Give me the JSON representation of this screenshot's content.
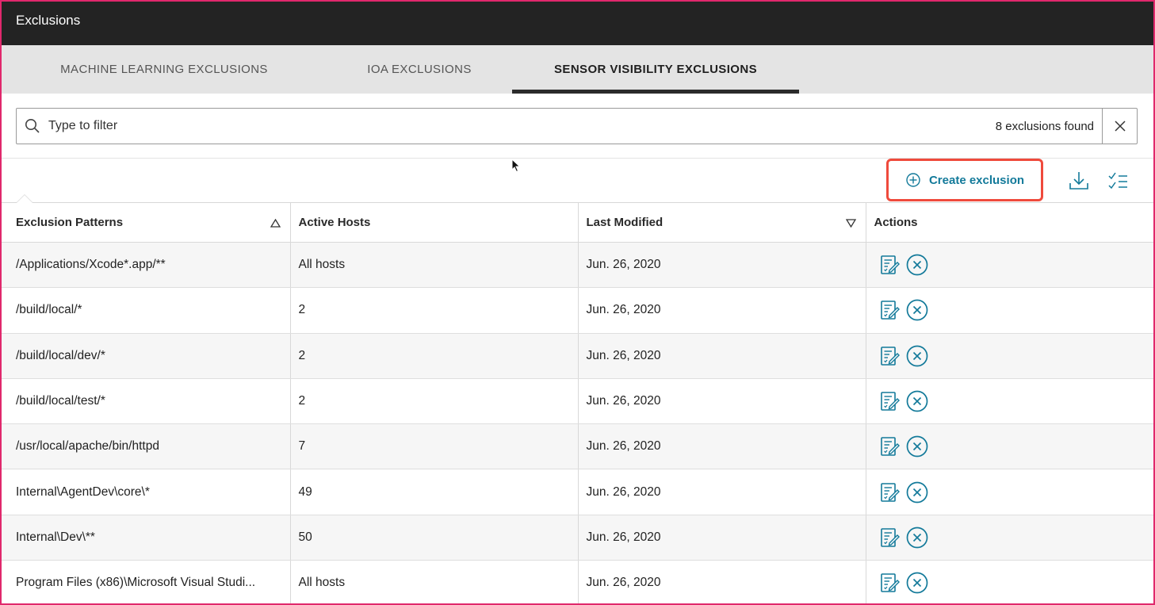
{
  "window": {
    "title": "Exclusions"
  },
  "tabs": [
    {
      "label": "MACHINE LEARNING EXCLUSIONS",
      "active": false
    },
    {
      "label": "IOA EXCLUSIONS",
      "active": false
    },
    {
      "label": "SENSOR VISIBILITY EXCLUSIONS",
      "active": true
    }
  ],
  "filter": {
    "placeholder": "Type to filter",
    "value": "",
    "count_text": "8 exclusions found",
    "search_icon": "search-icon",
    "clear_icon": "close-icon"
  },
  "toolbar": {
    "create_label": "Create exclusion",
    "create_icon": "plus-circle-icon",
    "download_icon": "download-icon",
    "checklist_icon": "checklist-icon"
  },
  "table": {
    "columns": [
      {
        "label": "Exclusion Patterns",
        "sort": "ascending"
      },
      {
        "label": "Active Hosts"
      },
      {
        "label": "Last Modified",
        "sort": "descending"
      },
      {
        "label": "Actions"
      }
    ],
    "rows": [
      {
        "pattern": "/Applications/Xcode*.app/**",
        "hosts": "All hosts",
        "modified": "Jun. 26, 2020"
      },
      {
        "pattern": "/build/local/*",
        "hosts": "2",
        "modified": "Jun. 26, 2020"
      },
      {
        "pattern": "/build/local/dev/*",
        "hosts": "2",
        "modified": "Jun. 26, 2020"
      },
      {
        "pattern": "/build/local/test/*",
        "hosts": "2",
        "modified": "Jun. 26, 2020"
      },
      {
        "pattern": "/usr/local/apache/bin/httpd",
        "hosts": "7",
        "modified": "Jun. 26, 2020"
      },
      {
        "pattern": "Internal\\AgentDev\\core\\*",
        "hosts": "49",
        "modified": "Jun. 26, 2020"
      },
      {
        "pattern": "Internal\\Dev\\**",
        "hosts": "50",
        "modified": "Jun. 26, 2020"
      },
      {
        "pattern": "Program Files (x86)\\Microsoft Visual Studi...",
        "hosts": "All hosts",
        "modified": "Jun. 26, 2020"
      }
    ],
    "row_action_icons": [
      "edit-icon",
      "delete-icon"
    ]
  },
  "colors": {
    "titlebar": "#232323",
    "tabbar": "#e4e4e4",
    "accent": "#137a9a",
    "highlight": "#ef4a3c",
    "frame": "#e0286c"
  }
}
